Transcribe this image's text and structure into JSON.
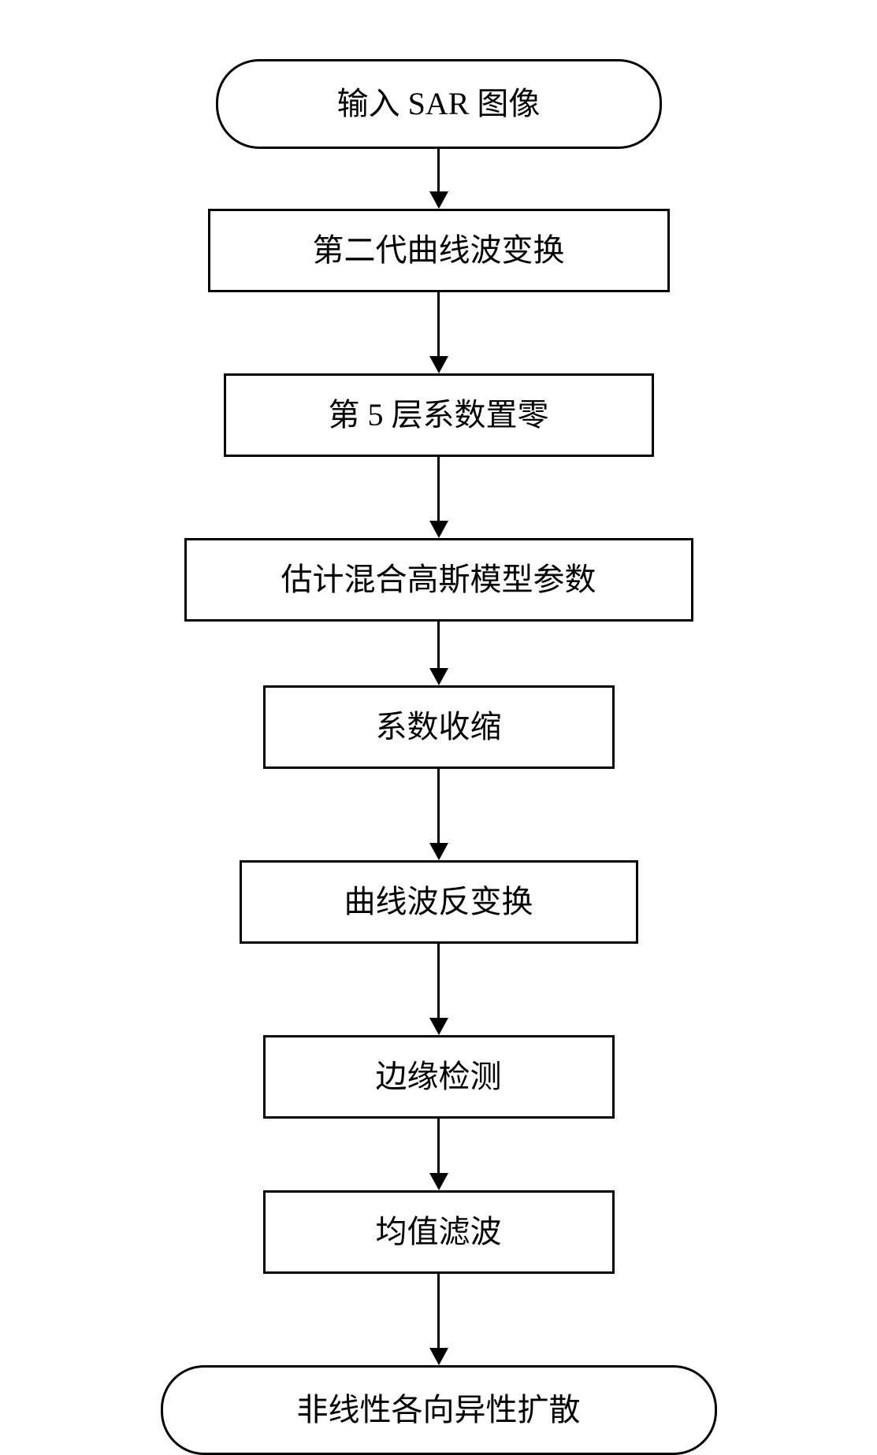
{
  "flowchart": {
    "type": "flowchart",
    "direction": "vertical",
    "background_color": "#ffffff",
    "border_color": "#000000",
    "border_width": 3,
    "font_size": 40,
    "terminal_border_radius": 55,
    "arrow": {
      "line_width": 3,
      "head_width": 24,
      "head_height": 22,
      "color": "#000000"
    },
    "nodes": [
      {
        "id": "n1",
        "shape": "terminal",
        "label": "输入 SAR 图像"
      },
      {
        "id": "n2",
        "shape": "process",
        "label": "第二代曲线波变换"
      },
      {
        "id": "n3",
        "shape": "process",
        "label": "第 5 层系数置零"
      },
      {
        "id": "n4",
        "shape": "process",
        "label": "估计混合高斯模型参数"
      },
      {
        "id": "n5",
        "shape": "process",
        "label": "系数收缩"
      },
      {
        "id": "n6",
        "shape": "process",
        "label": "曲线波反变换"
      },
      {
        "id": "n7",
        "shape": "process",
        "label": "边缘检测"
      },
      {
        "id": "n8",
        "shape": "process",
        "label": "均值滤波"
      },
      {
        "id": "n9",
        "shape": "terminal",
        "label": "非线性各向异性扩散"
      }
    ],
    "edges": [
      {
        "from": "n1",
        "to": "n2",
        "length": 55
      },
      {
        "from": "n2",
        "to": "n3",
        "length": 82
      },
      {
        "from": "n3",
        "to": "n4",
        "length": 82
      },
      {
        "from": "n4",
        "to": "n5",
        "length": 60
      },
      {
        "from": "n5",
        "to": "n6",
        "length": 95
      },
      {
        "from": "n6",
        "to": "n7",
        "length": 95
      },
      {
        "from": "n7",
        "to": "n8",
        "length": 70
      },
      {
        "from": "n8",
        "to": "n9",
        "length": 95
      }
    ]
  }
}
